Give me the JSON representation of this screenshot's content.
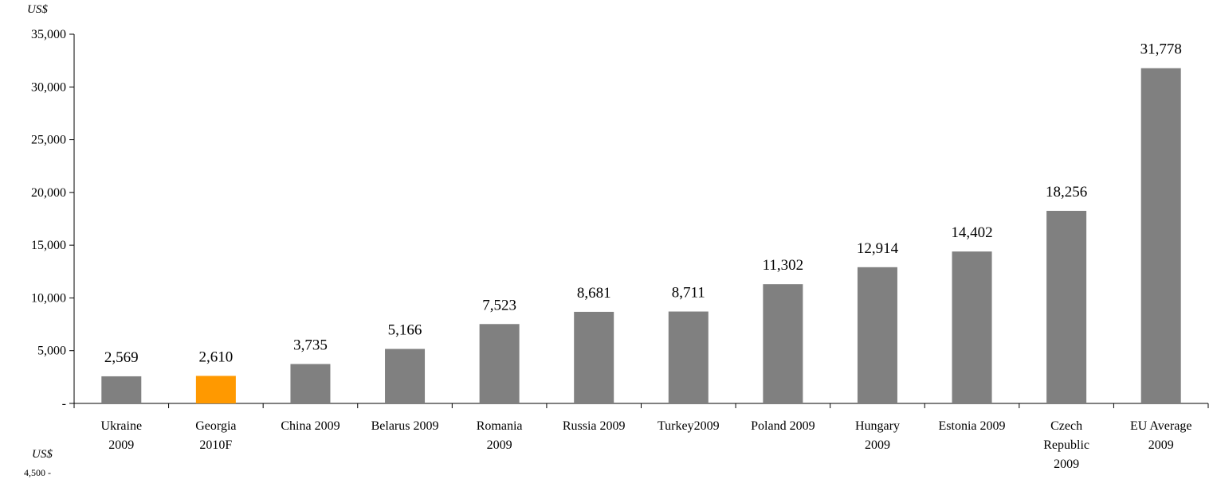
{
  "chart_data": {
    "type": "bar",
    "ylabel": "US$",
    "categories": [
      [
        "Ukraine",
        "2009"
      ],
      [
        "Georgia",
        "2010F"
      ],
      [
        "China 2009"
      ],
      [
        "Belarus 2009"
      ],
      [
        "Romania",
        "2009"
      ],
      [
        "Russia 2009"
      ],
      [
        "Turkey2009"
      ],
      [
        "Poland 2009"
      ],
      [
        "Hungary",
        "2009"
      ],
      [
        "Estonia 2009"
      ],
      [
        "Czech",
        "Republic",
        "2009"
      ],
      [
        "EU Average",
        "2009"
      ]
    ],
    "values": [
      2569,
      2610,
      3735,
      5166,
      7523,
      8681,
      8711,
      11302,
      12914,
      14402,
      18256,
      31778
    ],
    "data_labels": [
      "2,569",
      "2,610",
      "3,735",
      "5,166",
      "7,523",
      "8,681",
      "8,711",
      "11,302",
      "12,914",
      "14,402",
      "18,256",
      "31,778"
    ],
    "ylim": [
      0,
      35000
    ],
    "yticks": [
      0,
      5000,
      10000,
      15000,
      20000,
      25000,
      30000,
      35000
    ],
    "ytick_labels": [
      "-",
      "5,000",
      "10,000",
      "15,000",
      "20,000",
      "25,000",
      "30,000",
      "35,000"
    ],
    "colors": [
      "#808080",
      "#FF9900",
      "#808080",
      "#808080",
      "#808080",
      "#808080",
      "#808080",
      "#808080",
      "#808080",
      "#808080",
      "#808080",
      "#808080"
    ],
    "grid": false,
    "legend": "none"
  },
  "next_chart_stub": {
    "unit": "US$",
    "first_tick": "4,500 -"
  }
}
